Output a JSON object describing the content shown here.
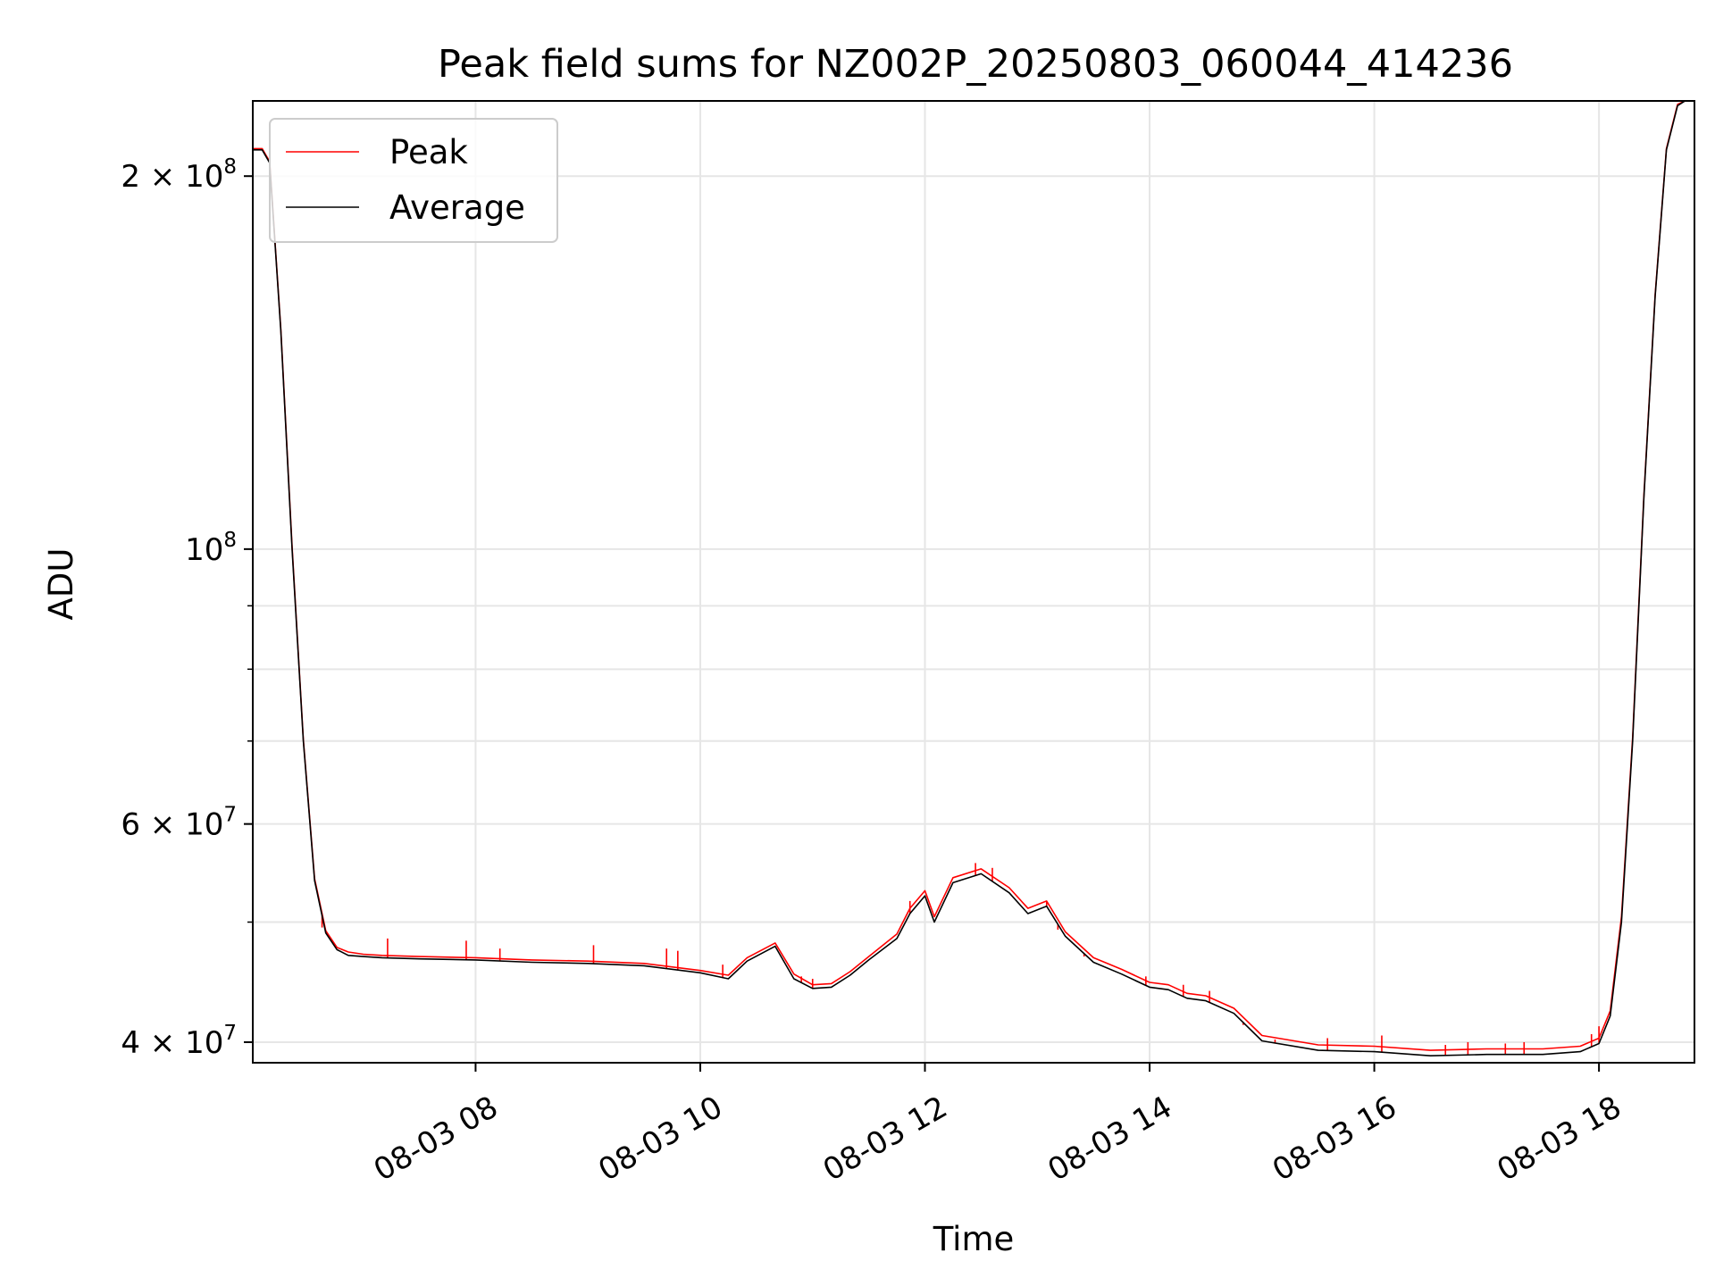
{
  "chart_data": {
    "type": "line",
    "title": "Peak field sums for NZ002P_20250803_060044_414236",
    "xlabel": "Time",
    "ylabel": "ADU",
    "yscale": "log",
    "ylim": [
      38500000,
      230000000
    ],
    "xlim": [
      "2025-08-03 06:01",
      "2025-08-03 18:51"
    ],
    "grid": true,
    "legend": {
      "placement": "top-left",
      "entries": [
        "Peak",
        "Average"
      ]
    },
    "x_ticks": [
      {
        "label": "08-03 08",
        "x": "2025-08-03 08:00"
      },
      {
        "label": "08-03 10",
        "x": "2025-08-03 10:00"
      },
      {
        "label": "08-03 12",
        "x": "2025-08-03 12:00"
      },
      {
        "label": "08-03 14",
        "x": "2025-08-03 14:00"
      },
      {
        "label": "08-03 16",
        "x": "2025-08-03 16:00"
      },
      {
        "label": "08-03 18",
        "x": "2025-08-03 18:00"
      }
    ],
    "y_ticks": [
      {
        "mantissa": "2 × 10",
        "exponent": "8",
        "value": 200000000
      },
      {
        "mantissa": "10",
        "exponent": "8",
        "value": 100000000
      },
      {
        "mantissa": "6 × 10",
        "exponent": "7",
        "value": 60000000
      },
      {
        "mantissa": "4 × 10",
        "exponent": "7",
        "value": 40000000
      }
    ],
    "y_minor_ticks": [
      50000000,
      70000000,
      80000000,
      90000000
    ],
    "colors": {
      "Peak": "#ff0000",
      "Average": "#000000"
    },
    "series": [
      {
        "name": "Average",
        "x": [
          "2025-08-03 06:01",
          "2025-08-03 06:06",
          "2025-08-03 06:10",
          "2025-08-03 06:16",
          "2025-08-03 06:22",
          "2025-08-03 06:28",
          "2025-08-03 06:34",
          "2025-08-03 06:40",
          "2025-08-03 06:46",
          "2025-08-03 06:52",
          "2025-08-03 07:00",
          "2025-08-03 07:10",
          "2025-08-03 07:30",
          "2025-08-03 08:00",
          "2025-08-03 08:30",
          "2025-08-03 09:00",
          "2025-08-03 09:30",
          "2025-08-03 10:00",
          "2025-08-03 10:15",
          "2025-08-03 10:25",
          "2025-08-03 10:40",
          "2025-08-03 10:50",
          "2025-08-03 11:00",
          "2025-08-03 11:10",
          "2025-08-03 11:20",
          "2025-08-03 11:30",
          "2025-08-03 11:45",
          "2025-08-03 11:52",
          "2025-08-03 12:00",
          "2025-08-03 12:05",
          "2025-08-03 12:15",
          "2025-08-03 12:30",
          "2025-08-03 12:45",
          "2025-08-03 12:55",
          "2025-08-03 13:05",
          "2025-08-03 13:15",
          "2025-08-03 13:30",
          "2025-08-03 13:45",
          "2025-08-03 14:00",
          "2025-08-03 14:10",
          "2025-08-03 14:20",
          "2025-08-03 14:30",
          "2025-08-03 14:45",
          "2025-08-03 15:00",
          "2025-08-03 15:30",
          "2025-08-03 16:00",
          "2025-08-03 16:30",
          "2025-08-03 17:00",
          "2025-08-03 17:30",
          "2025-08-03 17:50",
          "2025-08-03 18:00",
          "2025-08-03 18:06",
          "2025-08-03 18:12",
          "2025-08-03 18:18",
          "2025-08-03 18:24",
          "2025-08-03 18:30",
          "2025-08-03 18:36",
          "2025-08-03 18:42",
          "2025-08-03 18:46",
          "2025-08-03 18:51"
        ],
        "values": [
          210000000,
          210000000,
          205000000,
          150000000,
          100000000,
          70000000,
          54000000,
          49000000,
          47500000,
          47000000,
          46900000,
          46800000,
          46700000,
          46600000,
          46400000,
          46300000,
          46100000,
          45500000,
          45000000,
          46500000,
          47800000,
          45000000,
          44200000,
          44300000,
          45300000,
          46600000,
          48500000,
          50800000,
          52500000,
          50000000,
          53800000,
          54700000,
          52800000,
          50800000,
          51500000,
          48700000,
          46400000,
          45400000,
          44300000,
          44100000,
          43400000,
          43200000,
          42200000,
          40100000,
          39400000,
          39300000,
          39000000,
          39100000,
          39100000,
          39300000,
          39900000,
          42000000,
          50000000,
          70000000,
          110000000,
          160000000,
          210000000,
          228000000,
          230000000,
          230000000
        ]
      },
      {
        "name": "Peak",
        "x": [
          "2025-08-03 06:01",
          "2025-08-03 06:06",
          "2025-08-03 06:10",
          "2025-08-03 06:16",
          "2025-08-03 06:22",
          "2025-08-03 06:28",
          "2025-08-03 06:34",
          "2025-08-03 06:40",
          "2025-08-03 06:46",
          "2025-08-03 06:52",
          "2025-08-03 07:00",
          "2025-08-03 07:10",
          "2025-08-03 07:30",
          "2025-08-03 08:00",
          "2025-08-03 08:30",
          "2025-08-03 09:00",
          "2025-08-03 09:30",
          "2025-08-03 10:00",
          "2025-08-03 10:15",
          "2025-08-03 10:25",
          "2025-08-03 10:40",
          "2025-08-03 10:50",
          "2025-08-03 11:00",
          "2025-08-03 11:10",
          "2025-08-03 11:20",
          "2025-08-03 11:30",
          "2025-08-03 11:45",
          "2025-08-03 11:52",
          "2025-08-03 12:00",
          "2025-08-03 12:05",
          "2025-08-03 12:15",
          "2025-08-03 12:30",
          "2025-08-03 12:45",
          "2025-08-03 12:55",
          "2025-08-03 13:05",
          "2025-08-03 13:15",
          "2025-08-03 13:30",
          "2025-08-03 13:45",
          "2025-08-03 14:00",
          "2025-08-03 14:10",
          "2025-08-03 14:20",
          "2025-08-03 14:30",
          "2025-08-03 14:45",
          "2025-08-03 15:00",
          "2025-08-03 15:30",
          "2025-08-03 16:00",
          "2025-08-03 16:30",
          "2025-08-03 17:00",
          "2025-08-03 17:30",
          "2025-08-03 17:50",
          "2025-08-03 18:00",
          "2025-08-03 18:06",
          "2025-08-03 18:12",
          "2025-08-03 18:18",
          "2025-08-03 18:24",
          "2025-08-03 18:30",
          "2025-08-03 18:36",
          "2025-08-03 18:42",
          "2025-08-03 18:46",
          "2025-08-03 18:51"
        ],
        "values": [
          210500000,
          210500000,
          205500000,
          150500000,
          100500000,
          70200000,
          54200000,
          49200000,
          47700000,
          47300000,
          47100000,
          47000000,
          46900000,
          46800000,
          46600000,
          46500000,
          46300000,
          45700000,
          45300000,
          46800000,
          48100000,
          45400000,
          44500000,
          44600000,
          45600000,
          46900000,
          48900000,
          51300000,
          53000000,
          50500000,
          54300000,
          55200000,
          53300000,
          51300000,
          52000000,
          49100000,
          46800000,
          45800000,
          44700000,
          44500000,
          43800000,
          43600000,
          42600000,
          40500000,
          39800000,
          39700000,
          39400000,
          39500000,
          39500000,
          39700000,
          40300000,
          42400000,
          50500000,
          70500000,
          110500000,
          160500000,
          210500000,
          228500000,
          230000000,
          230000000
        ]
      }
    ],
    "peak_spikes": {
      "x": [
        "2025-08-03 06:38",
        "2025-08-03 07:13",
        "2025-08-03 07:55",
        "2025-08-03 08:13",
        "2025-08-03 09:03",
        "2025-08-03 09:42",
        "2025-08-03 09:48",
        "2025-08-03 10:12",
        "2025-08-03 10:54",
        "2025-08-03 11:00",
        "2025-08-03 11:52",
        "2025-08-03 12:27",
        "2025-08-03 12:36",
        "2025-08-03 13:05",
        "2025-08-03 13:11",
        "2025-08-03 13:25",
        "2025-08-03 13:39",
        "2025-08-03 13:58",
        "2025-08-03 14:18",
        "2025-08-03 14:32",
        "2025-08-03 14:50",
        "2025-08-03 15:07",
        "2025-08-03 15:35",
        "2025-08-03 16:04",
        "2025-08-03 16:38",
        "2025-08-03 16:50",
        "2025-08-03 17:10",
        "2025-08-03 17:20",
        "2025-08-03 17:56",
        "2025-08-03 18:00"
      ],
      "values": [
        49500000,
        48500000,
        48300000,
        47600000,
        47900000,
        47600000,
        47400000,
        46200000,
        45200000,
        45000000,
        52000000,
        55800000,
        55300000,
        51900000,
        49300000,
        46900000,
        45800000,
        45200000,
        44500000,
        44000000,
        41300000,
        40200000,
        40300000,
        40500000,
        39800000,
        40000000,
        39900000,
        40000000,
        40600000,
        41200000
      ]
    }
  }
}
